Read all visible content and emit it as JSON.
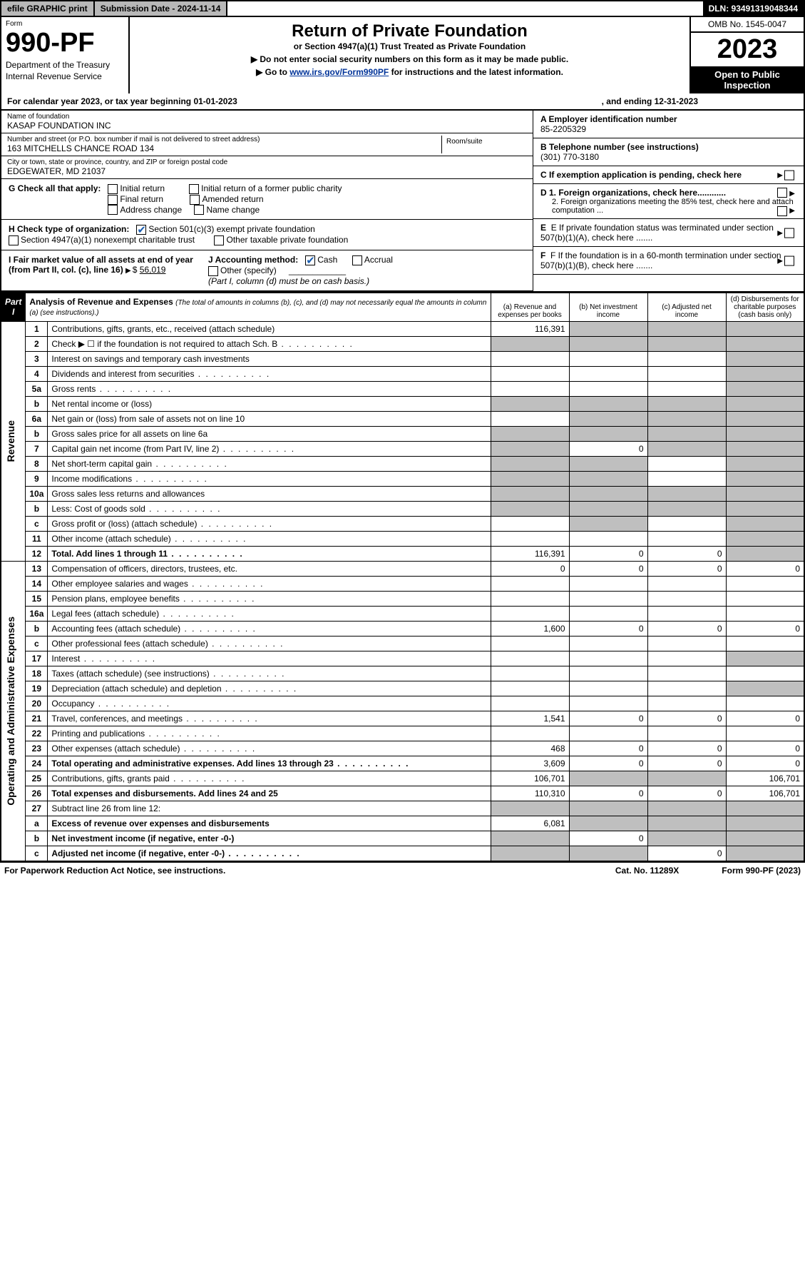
{
  "topbar": {
    "efile": "efile GRAPHIC print",
    "submission_label": "Submission Date - 2024-11-14",
    "dln": "DLN: 93491319048344"
  },
  "header": {
    "form_label": "Form",
    "form_number": "990-PF",
    "dept1": "Department of the Treasury",
    "dept2": "Internal Revenue Service",
    "title": "Return of Private Foundation",
    "subtitle": "or Section 4947(a)(1) Trust Treated as Private Foundation",
    "note1": "▶ Do not enter social security numbers on this form as it may be made public.",
    "note2_a": "▶ Go to ",
    "note2_link": "www.irs.gov/Form990PF",
    "note2_b": " for instructions and the latest information.",
    "omb": "OMB No. 1545-0047",
    "year": "2023",
    "inspect": "Open to Public Inspection"
  },
  "calendar": {
    "a": "For calendar year 2023, or tax year beginning 01-01-2023",
    "b": ", and ending 12-31-2023"
  },
  "foundation": {
    "name_label": "Name of foundation",
    "name": "KASAP FOUNDATION INC",
    "addr_label": "Number and street (or P.O. box number if mail is not delivered to street address)",
    "addr": "163 MITCHELLS CHANCE ROAD 134",
    "room_label": "Room/suite",
    "city_label": "City or town, state or province, country, and ZIP or foreign postal code",
    "city": "EDGEWATER, MD  21037"
  },
  "right": {
    "a_label": "A Employer identification number",
    "a_val": "85-2205329",
    "b_label": "B Telephone number (see instructions)",
    "b_val": "(301) 770-3180",
    "c_text": "C If exemption application is pending, check here",
    "d1": "D 1. Foreign organizations, check here............",
    "d2": "2. Foreign organizations meeting the 85% test, check here and attach computation ...",
    "e": "E  If private foundation status was terminated under section 507(b)(1)(A), check here .......",
    "f": "F  If the foundation is in a 60-month termination under section 507(b)(1)(B), check here .......",
    "g_label": "G Check all that apply:",
    "g_opts": [
      "Initial return",
      "Final return",
      "Address change",
      "Initial return of a former public charity",
      "Amended return",
      "Name change"
    ],
    "h_label": "H Check type of organization:",
    "h1": "Section 501(c)(3) exempt private foundation",
    "h2": "Section 4947(a)(1) nonexempt charitable trust",
    "h3": "Other taxable private foundation",
    "i_label": "I Fair market value of all assets at end of year (from Part II, col. (c), line 16)",
    "i_val": "56,019",
    "j_label": "J Accounting method:",
    "j_cash": "Cash",
    "j_accrual": "Accrual",
    "j_other": "Other (specify)",
    "j_note": "(Part I, column (d) must be on cash basis.)"
  },
  "part1": {
    "label": "Part I",
    "title": "Analysis of Revenue and Expenses",
    "subtitle": "(The total of amounts in columns (b), (c), and (d) may not necessarily equal the amounts in column (a) (see instructions).)",
    "col_a": "(a)  Revenue and expenses per books",
    "col_b": "(b)  Net investment income",
    "col_c": "(c)  Adjusted net income",
    "col_d": "(d)  Disbursements for charitable purposes (cash basis only)"
  },
  "sections": {
    "revenue": "Revenue",
    "expenses": "Operating and Administrative Expenses"
  },
  "rows": [
    {
      "n": "1",
      "d": "Contributions, gifts, grants, etc., received (attach schedule)",
      "a": "116,391",
      "gray": [
        false,
        true,
        true,
        true
      ]
    },
    {
      "n": "2",
      "d": "Check ▶ ☐ if the foundation is not required to attach Sch. B",
      "dots": true,
      "gray": [
        true,
        true,
        true,
        true
      ]
    },
    {
      "n": "3",
      "d": "Interest on savings and temporary cash investments",
      "gray": [
        false,
        false,
        false,
        true
      ]
    },
    {
      "n": "4",
      "d": "Dividends and interest from securities",
      "dots": true,
      "gray": [
        false,
        false,
        false,
        true
      ]
    },
    {
      "n": "5a",
      "d": "Gross rents",
      "dots": true,
      "gray": [
        false,
        false,
        false,
        true
      ]
    },
    {
      "n": "b",
      "d": "Net rental income or (loss)",
      "gray": [
        true,
        true,
        true,
        true
      ]
    },
    {
      "n": "6a",
      "d": "Net gain or (loss) from sale of assets not on line 10",
      "gray": [
        false,
        true,
        true,
        true
      ]
    },
    {
      "n": "b",
      "d": "Gross sales price for all assets on line 6a",
      "gray": [
        true,
        true,
        true,
        true
      ]
    },
    {
      "n": "7",
      "d": "Capital gain net income (from Part IV, line 2)",
      "dots": true,
      "b": "0",
      "gray": [
        true,
        false,
        true,
        true
      ]
    },
    {
      "n": "8",
      "d": "Net short-term capital gain",
      "dots": true,
      "gray": [
        true,
        true,
        false,
        true
      ]
    },
    {
      "n": "9",
      "d": "Income modifications",
      "dots": true,
      "gray": [
        true,
        true,
        false,
        true
      ]
    },
    {
      "n": "10a",
      "d": "Gross sales less returns and allowances",
      "gray": [
        true,
        true,
        true,
        true
      ]
    },
    {
      "n": "b",
      "d": "Less: Cost of goods sold",
      "dots": true,
      "gray": [
        true,
        true,
        true,
        true
      ]
    },
    {
      "n": "c",
      "d": "Gross profit or (loss) (attach schedule)",
      "dots": true,
      "gray": [
        false,
        true,
        false,
        true
      ]
    },
    {
      "n": "11",
      "d": "Other income (attach schedule)",
      "dots": true,
      "gray": [
        false,
        false,
        false,
        true
      ]
    },
    {
      "n": "12",
      "d": "Total. Add lines 1 through 11",
      "dots": true,
      "bold": true,
      "a": "116,391",
      "b": "0",
      "c": "0",
      "gray": [
        false,
        false,
        false,
        true
      ]
    },
    {
      "n": "13",
      "d": "Compensation of officers, directors, trustees, etc.",
      "a": "0",
      "b": "0",
      "c": "0",
      "dd": "0",
      "gray": [
        false,
        false,
        false,
        false
      ]
    },
    {
      "n": "14",
      "d": "Other employee salaries and wages",
      "dots": true,
      "gray": [
        false,
        false,
        false,
        false
      ]
    },
    {
      "n": "15",
      "d": "Pension plans, employee benefits",
      "dots": true,
      "gray": [
        false,
        false,
        false,
        false
      ]
    },
    {
      "n": "16a",
      "d": "Legal fees (attach schedule)",
      "dots": true,
      "gray": [
        false,
        false,
        false,
        false
      ]
    },
    {
      "n": "b",
      "d": "Accounting fees (attach schedule)",
      "dots": true,
      "a": "1,600",
      "b": "0",
      "c": "0",
      "dd": "0",
      "gray": [
        false,
        false,
        false,
        false
      ]
    },
    {
      "n": "c",
      "d": "Other professional fees (attach schedule)",
      "dots": true,
      "gray": [
        false,
        false,
        false,
        false
      ]
    },
    {
      "n": "17",
      "d": "Interest",
      "dots": true,
      "gray": [
        false,
        false,
        false,
        true
      ]
    },
    {
      "n": "18",
      "d": "Taxes (attach schedule) (see instructions)",
      "dots": true,
      "gray": [
        false,
        false,
        false,
        false
      ]
    },
    {
      "n": "19",
      "d": "Depreciation (attach schedule) and depletion",
      "dots": true,
      "gray": [
        false,
        false,
        false,
        true
      ]
    },
    {
      "n": "20",
      "d": "Occupancy",
      "dots": true,
      "gray": [
        false,
        false,
        false,
        false
      ]
    },
    {
      "n": "21",
      "d": "Travel, conferences, and meetings",
      "dots": true,
      "a": "1,541",
      "b": "0",
      "c": "0",
      "dd": "0",
      "gray": [
        false,
        false,
        false,
        false
      ]
    },
    {
      "n": "22",
      "d": "Printing and publications",
      "dots": true,
      "gray": [
        false,
        false,
        false,
        false
      ]
    },
    {
      "n": "23",
      "d": "Other expenses (attach schedule)",
      "dots": true,
      "a": "468",
      "b": "0",
      "c": "0",
      "dd": "0",
      "gray": [
        false,
        false,
        false,
        false
      ]
    },
    {
      "n": "24",
      "d": "Total operating and administrative expenses. Add lines 13 through 23",
      "dots": true,
      "bold": true,
      "a": "3,609",
      "b": "0",
      "c": "0",
      "dd": "0",
      "gray": [
        false,
        false,
        false,
        false
      ]
    },
    {
      "n": "25",
      "d": "Contributions, gifts, grants paid",
      "dots": true,
      "a": "106,701",
      "dd": "106,701",
      "gray": [
        false,
        true,
        true,
        false
      ]
    },
    {
      "n": "26",
      "d": "Total expenses and disbursements. Add lines 24 and 25",
      "bold": true,
      "a": "110,310",
      "b": "0",
      "c": "0",
      "dd": "106,701",
      "gray": [
        false,
        false,
        false,
        false
      ]
    },
    {
      "n": "27",
      "d": "Subtract line 26 from line 12:",
      "gray": [
        true,
        true,
        true,
        true
      ]
    },
    {
      "n": "a",
      "d": "Excess of revenue over expenses and disbursements",
      "bold": true,
      "a": "6,081",
      "gray": [
        false,
        true,
        true,
        true
      ]
    },
    {
      "n": "b",
      "d": "Net investment income (if negative, enter -0-)",
      "bold": true,
      "b": "0",
      "gray": [
        true,
        false,
        true,
        true
      ]
    },
    {
      "n": "c",
      "d": "Adjusted net income (if negative, enter -0-)",
      "bold": true,
      "dots": true,
      "c": "0",
      "gray": [
        true,
        true,
        false,
        true
      ]
    }
  ],
  "footer": {
    "a": "For Paperwork Reduction Act Notice, see instructions.",
    "b": "Cat. No. 11289X",
    "c": "Form 990-PF (2023)"
  }
}
